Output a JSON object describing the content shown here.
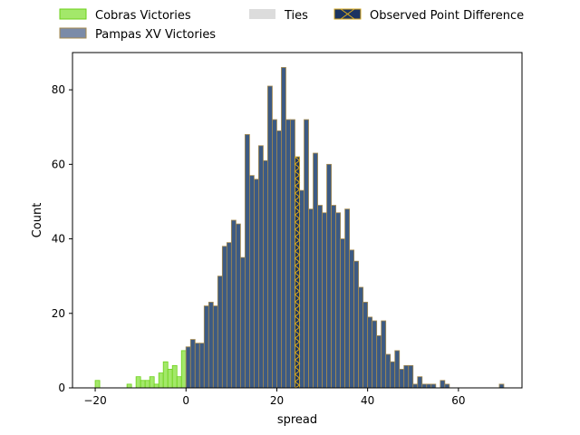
{
  "chart_data": {
    "type": "bar",
    "xlabel": "spread",
    "ylabel": "Count",
    "xlim": [
      -25,
      74
    ],
    "ylim": [
      0,
      90
    ],
    "xticks": [
      -20,
      0,
      20,
      40,
      60
    ],
    "yticks": [
      0,
      20,
      40,
      60,
      80
    ],
    "xtick_labels": [
      "−20",
      "0",
      "20",
      "40",
      "60"
    ],
    "ytick_labels": [
      "0",
      "20",
      "40",
      "60",
      "80"
    ],
    "bin_width": 1,
    "legend": {
      "placement": "top-center outside",
      "entries": [
        {
          "key": "cobras",
          "label": "Cobras Victories"
        },
        {
          "key": "pampas",
          "label": "Pampas XV Victories"
        },
        {
          "key": "ties",
          "label": "Ties"
        },
        {
          "key": "observed",
          "label": "Observed Point Difference"
        }
      ]
    },
    "colors": {
      "cobras_fill": "#a3e86a",
      "cobras_edge": "#6dd11a",
      "pampas_fill": "#3c5a83",
      "pampas_edge": "#a58a4e",
      "ties_fill": "#d3d3d3",
      "ties_edge": "#a9a9a9",
      "observed_fill": "#1c3461",
      "observed_edge": "#d7a91f"
    },
    "observed_point_difference": 24,
    "series": [
      {
        "name": "Cobras Victories",
        "key": "cobras",
        "x": [
          -20,
          -13,
          -11,
          -10,
          -9,
          -8,
          -7,
          -6,
          -5,
          -4,
          -3,
          -2,
          -1
        ],
        "values": [
          2,
          1,
          3,
          2,
          2,
          3,
          1,
          4,
          7,
          5,
          6,
          3,
          10
        ]
      },
      {
        "name": "Ties",
        "key": "ties",
        "x": [
          0
        ],
        "values": [
          11
        ]
      },
      {
        "name": "Pampas XV Victories",
        "key": "pampas",
        "x": [
          0,
          1,
          2,
          3,
          4,
          5,
          6,
          7,
          8,
          9,
          10,
          11,
          12,
          13,
          14,
          15,
          16,
          17,
          18,
          19,
          20,
          21,
          22,
          23,
          24,
          25,
          26,
          27,
          28,
          29,
          30,
          31,
          32,
          33,
          34,
          35,
          36,
          37,
          38,
          39,
          40,
          41,
          42,
          43,
          44,
          45,
          46,
          47,
          48,
          49,
          50,
          51,
          52,
          53,
          54,
          55,
          56,
          57,
          69
        ],
        "values": [
          11,
          13,
          12,
          12,
          22,
          23,
          22,
          30,
          38,
          39,
          45,
          44,
          35,
          68,
          57,
          56,
          65,
          61,
          81,
          72,
          69,
          86,
          72,
          72,
          62,
          53,
          72,
          48,
          63,
          49,
          47,
          60,
          49,
          47,
          40,
          48,
          37,
          34,
          27,
          23,
          19,
          18,
          14,
          18,
          9,
          7,
          10,
          5,
          6,
          6,
          1,
          3,
          1,
          1,
          1,
          0,
          2,
          1,
          1
        ]
      }
    ]
  }
}
